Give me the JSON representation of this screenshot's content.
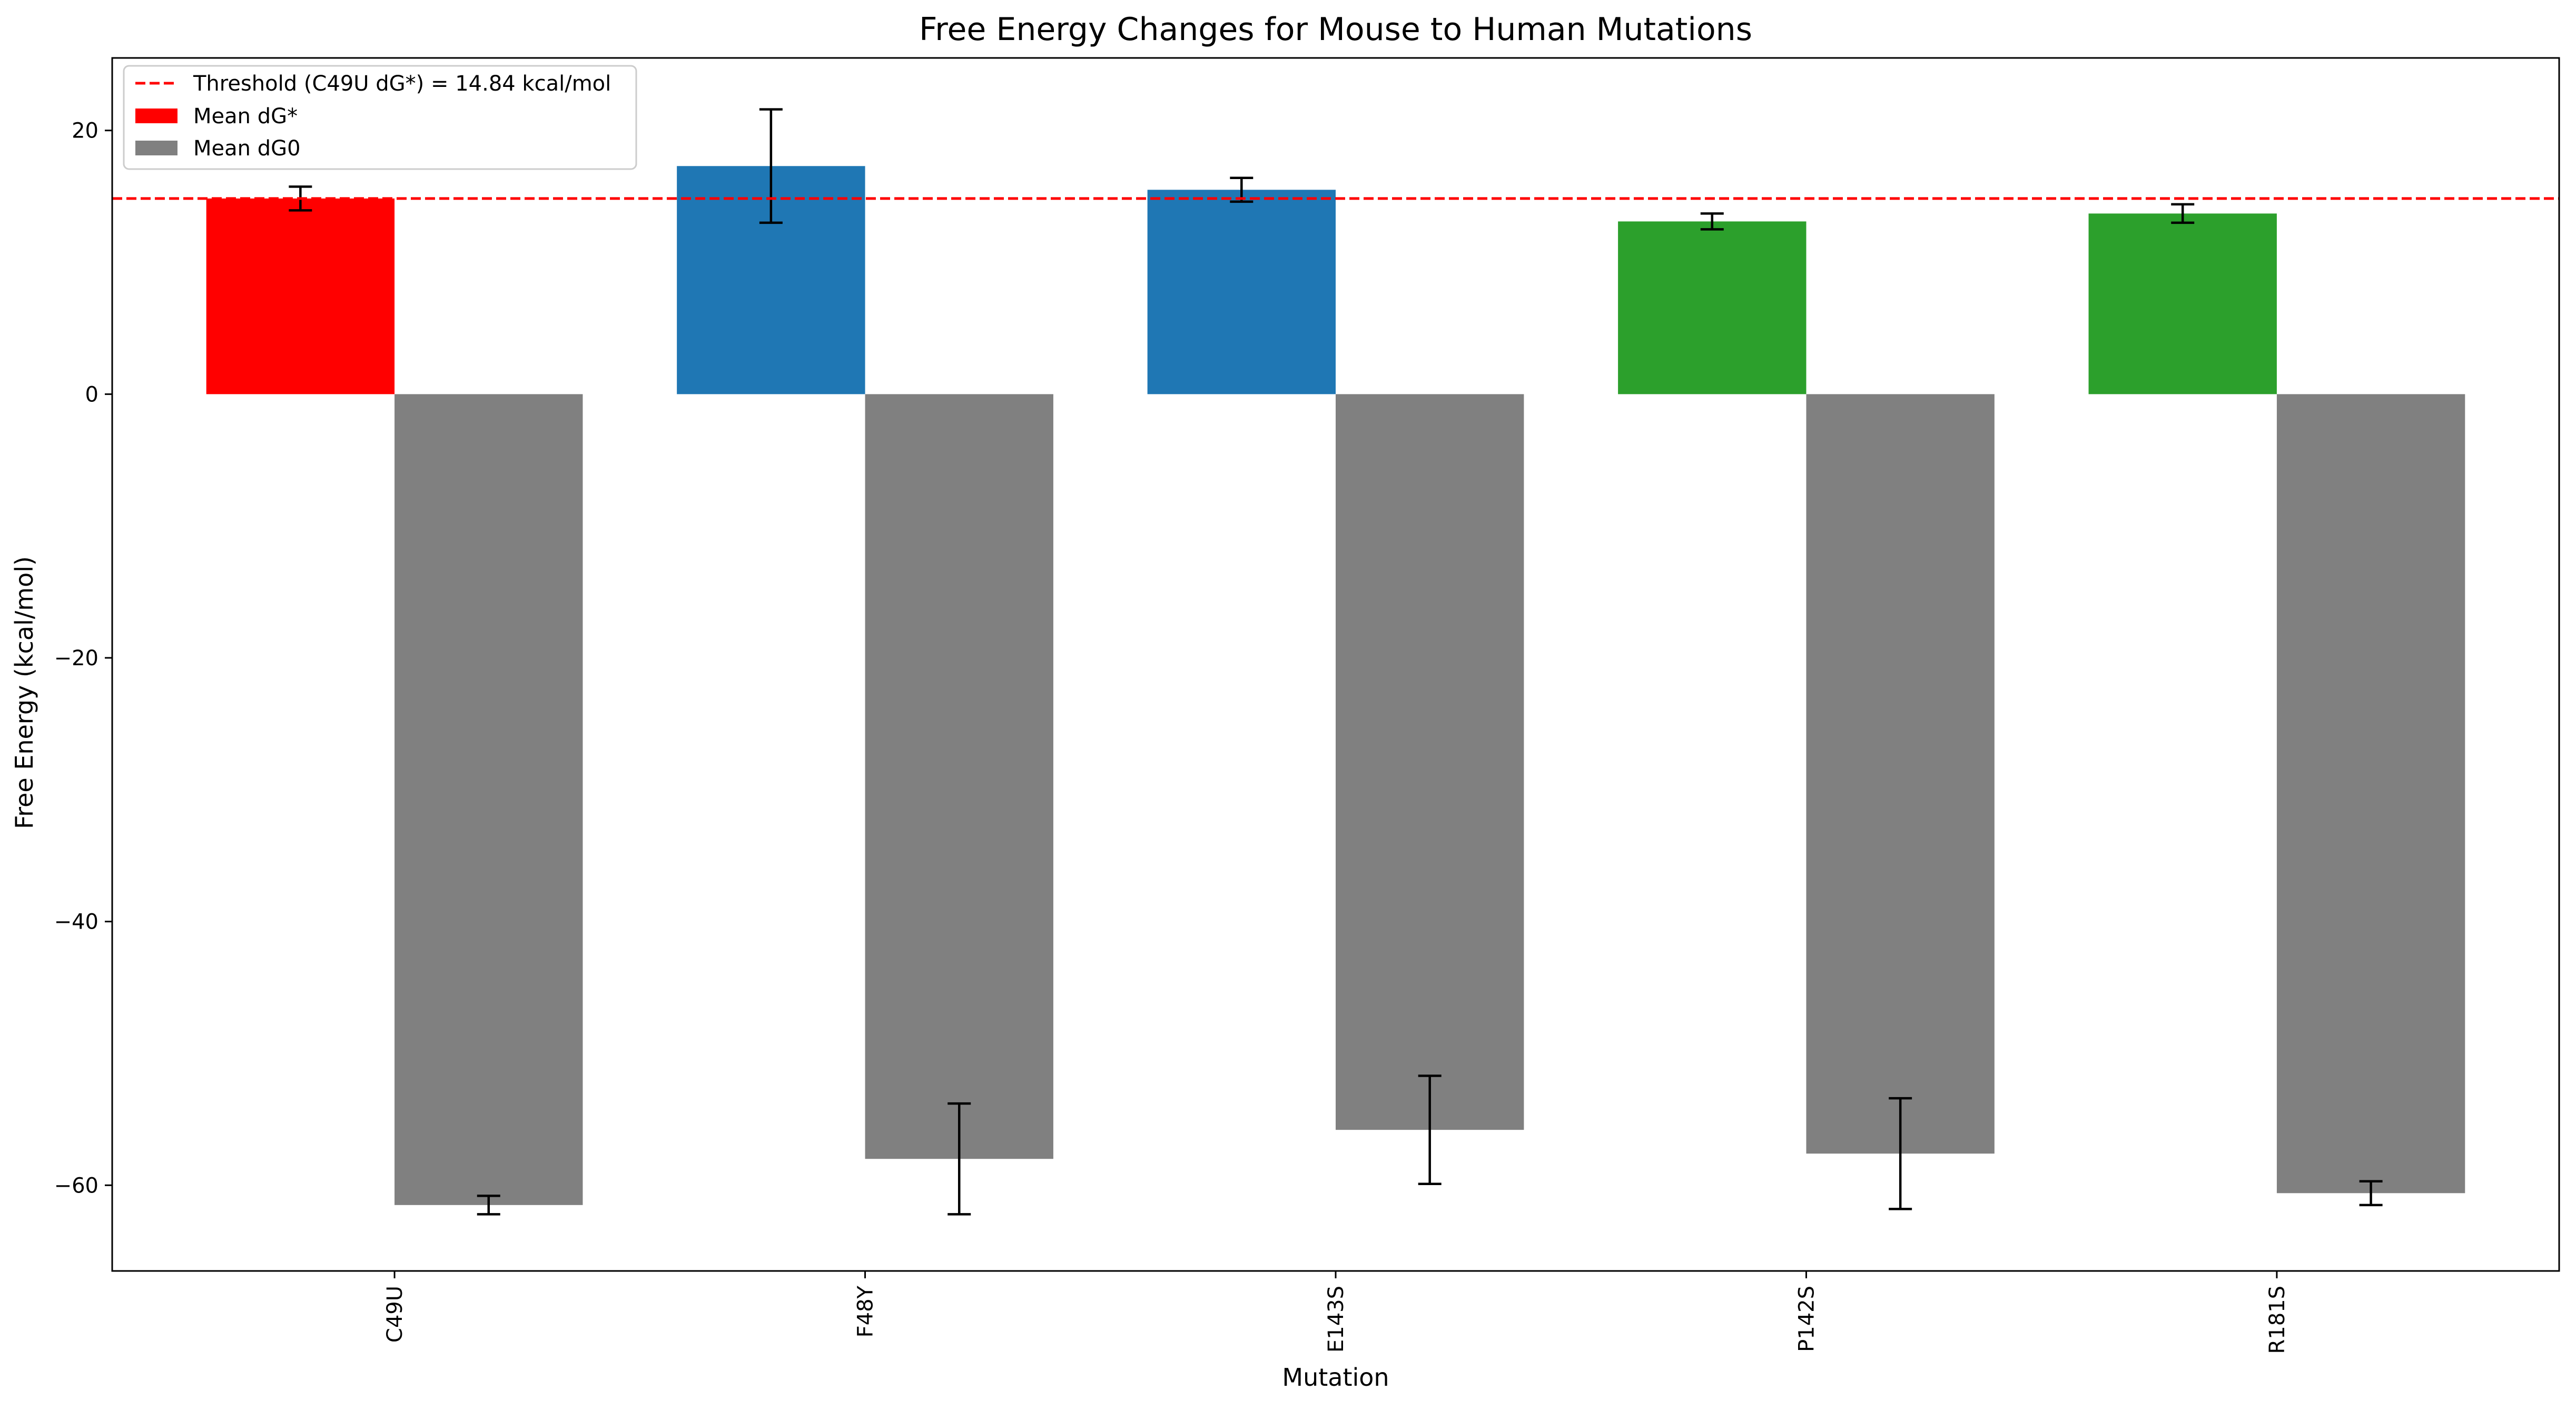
{
  "chart_data": {
    "type": "bar",
    "title": "Free Energy Changes for Mouse to Human Mutations",
    "xlabel": "Mutation",
    "ylabel": "Free Energy (kcal/mol)",
    "categories": [
      "C49U",
      "F48Y",
      "E143S",
      "P142S",
      "R181S"
    ],
    "ylim": [
      -66.5,
      25.5
    ],
    "yticks": [
      20,
      0,
      -20,
      -40,
      -60
    ],
    "ytick_labels": [
      "20",
      "0",
      "−20",
      "−40",
      "−60"
    ],
    "grid": false,
    "legend_position": "top-left",
    "series": [
      {
        "name": "Mean dG*",
        "values": [
          14.84,
          17.3,
          15.5,
          13.1,
          13.7
        ],
        "errors": [
          0.9,
          4.3,
          0.9,
          0.6,
          0.7
        ],
        "colors": [
          "#ff0000",
          "#1f77b4",
          "#1f77b4",
          "#2ca02c",
          "#2ca02c"
        ],
        "legend_color": "#ff0000"
      },
      {
        "name": "Mean dG0",
        "values": [
          -61.5,
          -58.0,
          -55.8,
          -57.6,
          -60.6
        ],
        "errors": [
          0.7,
          4.2,
          4.1,
          4.2,
          0.9
        ],
        "colors": [
          "#808080",
          "#808080",
          "#808080",
          "#808080",
          "#808080"
        ],
        "legend_color": "#808080"
      }
    ],
    "threshold": {
      "value": 14.84,
      "label": "Threshold (C49U dG*) = 14.84 kcal/mol",
      "color": "#ff0000",
      "style": "dashed"
    }
  }
}
